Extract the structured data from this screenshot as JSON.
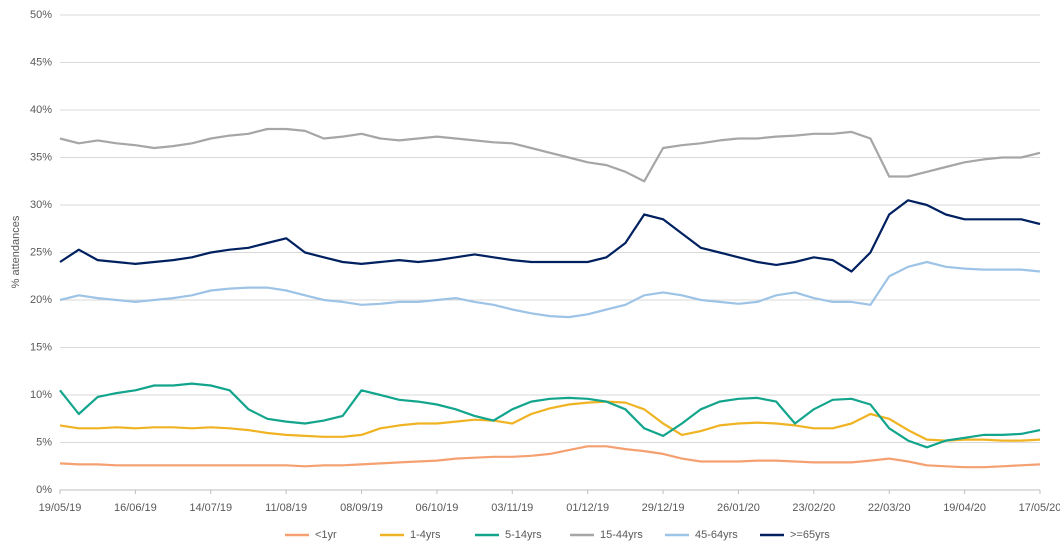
{
  "chart_data": {
    "type": "line",
    "y_label": "% attendances",
    "x": [
      "19/05/19",
      "26/05/19",
      "02/06/19",
      "09/06/19",
      "16/06/19",
      "23/06/19",
      "30/06/19",
      "07/07/19",
      "14/07/19",
      "21/07/19",
      "28/07/19",
      "04/08/19",
      "11/08/19",
      "18/08/19",
      "25/08/19",
      "01/09/19",
      "08/09/19",
      "15/09/19",
      "22/09/19",
      "29/09/19",
      "06/10/19",
      "13/10/19",
      "20/10/19",
      "27/10/19",
      "03/11/19",
      "10/11/19",
      "17/11/19",
      "24/11/19",
      "01/12/19",
      "08/12/19",
      "15/12/19",
      "22/12/19",
      "29/12/19",
      "05/01/20",
      "12/01/20",
      "19/01/20",
      "26/01/20",
      "02/02/20",
      "09/02/20",
      "16/02/20",
      "23/02/20",
      "01/03/20",
      "08/03/20",
      "15/03/20",
      "22/03/20",
      "29/03/20",
      "05/04/20",
      "12/04/20",
      "19/04/20",
      "26/04/20",
      "03/05/20",
      "10/05/20",
      "17/05/20"
    ],
    "xlim": [
      "19/05/19",
      "17/05/20"
    ],
    "xticks": [
      "19/05/19",
      "16/06/19",
      "14/07/19",
      "11/08/19",
      "08/09/19",
      "06/10/19",
      "03/11/19",
      "01/12/19",
      "29/12/19",
      "26/01/20",
      "23/02/20",
      "22/03/20",
      "19/04/20",
      "17/05/20"
    ],
    "ylim": [
      0,
      50
    ],
    "yticks": [
      {
        "value": 0,
        "label": "0%"
      },
      {
        "value": 5,
        "label": "5%"
      },
      {
        "value": 10,
        "label": "10%"
      },
      {
        "value": 15,
        "label": "15%"
      },
      {
        "value": 20,
        "label": "20%"
      },
      {
        "value": 25,
        "label": "25%"
      },
      {
        "value": 30,
        "label": "30%"
      },
      {
        "value": 35,
        "label": "35%"
      },
      {
        "value": 40,
        "label": "40%"
      },
      {
        "value": 45,
        "label": "45%"
      },
      {
        "value": 50,
        "label": "50%"
      }
    ],
    "grid": true,
    "legend": "bottom",
    "series": [
      {
        "name": "<1yr",
        "color": "#f4a070",
        "values": [
          2.8,
          2.7,
          2.7,
          2.6,
          2.6,
          2.6,
          2.6,
          2.6,
          2.6,
          2.6,
          2.6,
          2.6,
          2.6,
          2.5,
          2.6,
          2.6,
          2.7,
          2.8,
          2.9,
          3.0,
          3.1,
          3.3,
          3.4,
          3.5,
          3.5,
          3.6,
          3.8,
          4.2,
          4.6,
          4.6,
          4.3,
          4.1,
          3.8,
          3.3,
          3.0,
          3.0,
          3.0,
          3.1,
          3.1,
          3.0,
          2.9,
          2.9,
          2.9,
          3.1,
          3.3,
          3.0,
          2.6,
          2.5,
          2.4,
          2.4,
          2.5,
          2.6,
          2.7
        ]
      },
      {
        "name": "1-4yrs",
        "color": "#f0b323",
        "values": [
          6.8,
          6.5,
          6.5,
          6.6,
          6.5,
          6.6,
          6.6,
          6.5,
          6.6,
          6.5,
          6.3,
          6.0,
          5.8,
          5.7,
          5.6,
          5.6,
          5.8,
          6.5,
          6.8,
          7.0,
          7.0,
          7.2,
          7.4,
          7.3,
          7.0,
          8.0,
          8.6,
          9.0,
          9.2,
          9.3,
          9.2,
          8.5,
          7.0,
          5.8,
          6.2,
          6.8,
          7.0,
          7.1,
          7.0,
          6.8,
          6.5,
          6.5,
          7.0,
          8.0,
          7.5,
          6.3,
          5.3,
          5.2,
          5.3,
          5.3,
          5.2,
          5.2,
          5.3
        ]
      },
      {
        "name": "5-14yrs",
        "color": "#12a58c",
        "values": [
          10.5,
          8.0,
          9.8,
          10.2,
          10.5,
          11.0,
          11.0,
          11.2,
          11.0,
          10.5,
          8.5,
          7.5,
          7.2,
          7.0,
          7.3,
          7.8,
          10.5,
          10.0,
          9.5,
          9.3,
          9.0,
          8.5,
          7.8,
          7.3,
          8.5,
          9.3,
          9.6,
          9.7,
          9.6,
          9.3,
          8.5,
          6.5,
          5.7,
          7.0,
          8.5,
          9.3,
          9.6,
          9.7,
          9.3,
          7.0,
          8.5,
          9.5,
          9.6,
          9.0,
          6.5,
          5.2,
          4.5,
          5.2,
          5.5,
          5.8,
          5.8,
          5.9,
          6.3
        ]
      },
      {
        "name": "15-44yrs",
        "color": "#a6a6a6",
        "values": [
          37.0,
          36.5,
          36.8,
          36.5,
          36.3,
          36.0,
          36.2,
          36.5,
          37.0,
          37.3,
          37.5,
          38.0,
          38.0,
          37.8,
          37.0,
          37.2,
          37.5,
          37.0,
          36.8,
          37.0,
          37.2,
          37.0,
          36.8,
          36.6,
          36.5,
          36.0,
          35.5,
          35.0,
          34.5,
          34.2,
          33.5,
          32.5,
          36.0,
          36.3,
          36.5,
          36.8,
          37.0,
          37.0,
          37.2,
          37.3,
          37.5,
          37.5,
          37.7,
          37.0,
          33.0,
          33.0,
          33.5,
          34.0,
          34.5,
          34.8,
          35.0,
          35.0,
          35.5
        ]
      },
      {
        "name": "45-64yrs",
        "color": "#9dc3e6",
        "values": [
          20.0,
          20.5,
          20.2,
          20.0,
          19.8,
          20.0,
          20.2,
          20.5,
          21.0,
          21.2,
          21.3,
          21.3,
          21.0,
          20.5,
          20.0,
          19.8,
          19.5,
          19.6,
          19.8,
          19.8,
          20.0,
          20.2,
          19.8,
          19.5,
          19.0,
          18.6,
          18.3,
          18.2,
          18.5,
          19.0,
          19.5,
          20.5,
          20.8,
          20.5,
          20.0,
          19.8,
          19.6,
          19.8,
          20.5,
          20.8,
          20.2,
          19.8,
          19.8,
          19.5,
          22.5,
          23.5,
          24.0,
          23.5,
          23.3,
          23.2,
          23.2,
          23.2,
          23.0
        ]
      },
      {
        "name": ">=65yrs",
        "color": "#002060",
        "values": [
          24.0,
          25.3,
          24.2,
          24.0,
          23.8,
          24.0,
          24.2,
          24.5,
          25.0,
          25.3,
          25.5,
          26.0,
          26.5,
          25.0,
          24.5,
          24.0,
          23.8,
          24.0,
          24.2,
          24.0,
          24.2,
          24.5,
          24.8,
          24.5,
          24.2,
          24.0,
          24.0,
          24.0,
          24.0,
          24.5,
          26.0,
          29.0,
          28.5,
          27.0,
          25.5,
          25.0,
          24.5,
          24.0,
          23.7,
          24.0,
          24.5,
          24.2,
          23.0,
          25.0,
          29.0,
          30.5,
          30.0,
          29.0,
          28.5,
          28.5,
          28.5,
          28.5,
          28.0
        ]
      }
    ]
  }
}
